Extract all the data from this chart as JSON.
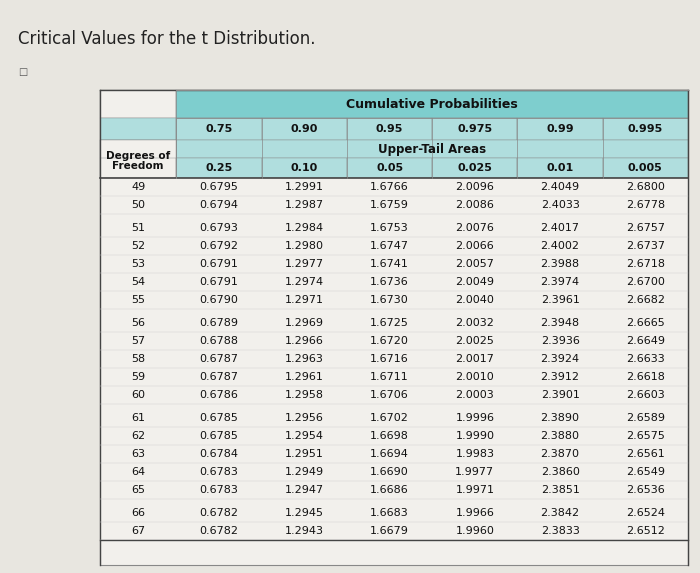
{
  "title": "Critical Values for the t Distribution.",
  "cum_prob_header": "Cumulative Probabilities",
  "cum_prob_values": [
    "0.75",
    "0.90",
    "0.95",
    "0.975",
    "0.99",
    "0.995"
  ],
  "upper_tail_header": "Upper-Tail Areas",
  "upper_tail_values": [
    "0.25",
    "0.10",
    "0.05",
    "0.025",
    "0.01",
    "0.005"
  ],
  "col_header_line1": "Degrees of",
  "col_header_line2": "Freedom",
  "rows": [
    [
      "49",
      "0.6795",
      "1.2991",
      "1.6766",
      "2.0096",
      "2.4049",
      "2.6800"
    ],
    [
      "50",
      "0.6794",
      "1.2987",
      "1.6759",
      "2.0086",
      "2.4033",
      "2.6778"
    ],
    [
      "51",
      "0.6793",
      "1.2984",
      "1.6753",
      "2.0076",
      "2.4017",
      "2.6757"
    ],
    [
      "52",
      "0.6792",
      "1.2980",
      "1.6747",
      "2.0066",
      "2.4002",
      "2.6737"
    ],
    [
      "53",
      "0.6791",
      "1.2977",
      "1.6741",
      "2.0057",
      "2.3988",
      "2.6718"
    ],
    [
      "54",
      "0.6791",
      "1.2974",
      "1.6736",
      "2.0049",
      "2.3974",
      "2.6700"
    ],
    [
      "55",
      "0.6790",
      "1.2971",
      "1.6730",
      "2.0040",
      "2.3961",
      "2.6682"
    ],
    [
      "56",
      "0.6789",
      "1.2969",
      "1.6725",
      "2.0032",
      "2.3948",
      "2.6665"
    ],
    [
      "57",
      "0.6788",
      "1.2966",
      "1.6720",
      "2.0025",
      "2.3936",
      "2.6649"
    ],
    [
      "58",
      "0.6787",
      "1.2963",
      "1.6716",
      "2.0017",
      "2.3924",
      "2.6633"
    ],
    [
      "59",
      "0.6787",
      "1.2961",
      "1.6711",
      "2.0010",
      "2.3912",
      "2.6618"
    ],
    [
      "60",
      "0.6786",
      "1.2958",
      "1.6706",
      "2.0003",
      "2.3901",
      "2.6603"
    ],
    [
      "61",
      "0.6785",
      "1.2956",
      "1.6702",
      "1.9996",
      "2.3890",
      "2.6589"
    ],
    [
      "62",
      "0.6785",
      "1.2954",
      "1.6698",
      "1.9990",
      "2.3880",
      "2.6575"
    ],
    [
      "63",
      "0.6784",
      "1.2951",
      "1.6694",
      "1.9983",
      "2.3870",
      "2.6561"
    ],
    [
      "64",
      "0.6783",
      "1.2949",
      "1.6690",
      "1.9977",
      "2.3860",
      "2.6549"
    ],
    [
      "65",
      "0.6783",
      "1.2947",
      "1.6686",
      "1.9971",
      "2.3851",
      "2.6536"
    ],
    [
      "66",
      "0.6782",
      "1.2945",
      "1.6683",
      "1.9966",
      "2.3842",
      "2.6524"
    ],
    [
      "67",
      "0.6782",
      "1.2943",
      "1.6679",
      "1.9960",
      "2.3833",
      "2.6512"
    ]
  ],
  "page_bg": "#e8e6e0",
  "header_bg": "#7ecece",
  "subheader_bg": "#b0dede",
  "table_bg": "#f0eeea",
  "line_color": "#888888",
  "group_breaks_before": [
    2,
    7,
    12,
    17
  ]
}
